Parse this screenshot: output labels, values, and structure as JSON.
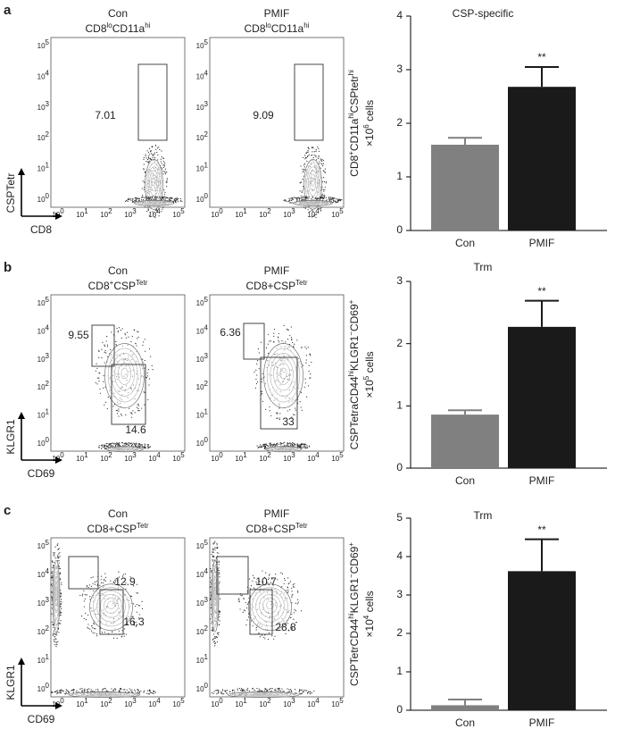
{
  "panels": [
    {
      "label": "a",
      "x_axis_label": "CD8",
      "y_axis_label": "CSPTetr",
      "flow": [
        {
          "title": "Con",
          "subtitle": [
            "CD8",
            "lo",
            "CD11a",
            "hi"
          ],
          "gates": [
            7.01
          ]
        },
        {
          "title": "PMIF",
          "subtitle": [
            "CD8",
            "lo",
            "CD11a",
            "hi"
          ],
          "gates": [
            9.09
          ]
        }
      ]
    },
    {
      "label": "b",
      "x_axis_label": "CD69",
      "y_axis_label": "KLGR1",
      "flow": [
        {
          "title": "Con",
          "subtitle": [
            "CD8",
            "+",
            "CSP",
            "Tetr"
          ],
          "gates": [
            9.55,
            14.6
          ]
        },
        {
          "title": "PMIF",
          "subtitle": [
            "CD8+CSP",
            "Tetr"
          ],
          "gates": [
            6.36,
            33
          ]
        }
      ]
    },
    {
      "label": "c",
      "x_axis_label": "CD69",
      "y_axis_label": "KLGR1",
      "flow": [
        {
          "title": "Con",
          "subtitle": [
            "CD8+CSP",
            "Tetr"
          ],
          "gates": [
            12.9,
            16.3
          ]
        },
        {
          "title": "PMIF",
          "subtitle": [
            "CD8+CSP",
            "Tetr"
          ],
          "gates": [
            10.7,
            28.8
          ]
        }
      ]
    }
  ],
  "flow_ticks": [
    [
      "10",
      "0"
    ],
    [
      "10",
      "1"
    ],
    [
      "10",
      "2"
    ],
    [
      "10",
      "3"
    ],
    [
      "10",
      "4"
    ],
    [
      "10",
      "5"
    ]
  ],
  "chart_data": [
    {
      "type": "bar",
      "title": "CSP-specific",
      "categories": [
        "Con",
        "PMIF"
      ],
      "values": [
        1.6,
        2.68
      ],
      "errors": [
        0.13,
        0.37
      ],
      "colors": [
        "#808080",
        "#1a1a1a"
      ],
      "ylim": [
        0,
        4
      ],
      "yticks": [
        0,
        1,
        2,
        3,
        4
      ],
      "annotation": "**",
      "ylabel": [
        [
          "CD8",
          "+",
          "CD11a",
          "hi",
          "CSPtetr",
          "hi"
        ],
        [
          "×10",
          "6",
          " cells"
        ]
      ]
    },
    {
      "type": "bar",
      "title": "Trm",
      "categories": [
        "Con",
        "PMIF"
      ],
      "values": [
        0.86,
        2.27
      ],
      "errors": [
        0.07,
        0.42
      ],
      "colors": [
        "#808080",
        "#1a1a1a"
      ],
      "ylim": [
        0,
        3
      ],
      "yticks": [
        0,
        1,
        2,
        3
      ],
      "annotation": "**",
      "ylabel": [
        [
          "CSPTetraCD44",
          "hi",
          "KLGR1",
          "−",
          "CD69",
          "+"
        ],
        [
          "×10",
          "5",
          " cells"
        ]
      ]
    },
    {
      "type": "bar",
      "title": "Trm",
      "categories": [
        "Con",
        "PMIF"
      ],
      "values": [
        0.13,
        3.62
      ],
      "errors": [
        0.15,
        0.83
      ],
      "colors": [
        "#808080",
        "#1a1a1a"
      ],
      "ylim": [
        0,
        5
      ],
      "yticks": [
        0,
        1,
        2,
        3,
        4,
        5
      ],
      "annotation": "**",
      "ylabel": [
        [
          "CSPTetrCD44",
          "hi",
          "KLGR1",
          "−",
          "CD69",
          "+"
        ],
        [
          "×10",
          "4",
          " cells"
        ]
      ]
    }
  ]
}
